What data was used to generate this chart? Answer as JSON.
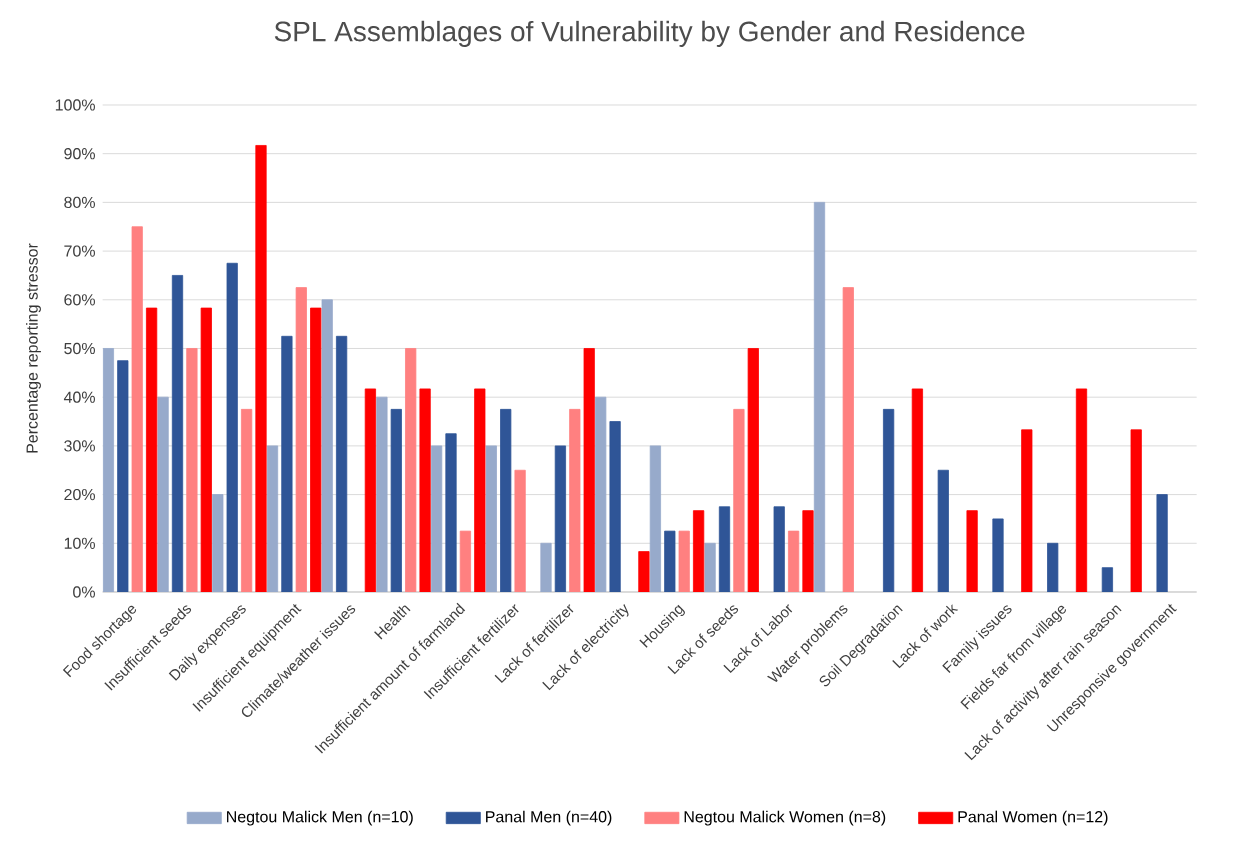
{
  "chart_data": {
    "type": "bar",
    "title": "SPL Assemblages of Vulnerability by Gender and Residence",
    "ylabel": "Percentage reporting stressor",
    "categories": [
      "Food shortage",
      "Insufficient seeds",
      "Daily expenses",
      "Insufficient equipment",
      "Climate/weather issues",
      "Health",
      "Insufficient amount of farmland",
      "Insufficient fertilizer",
      "Lack of fertilizer",
      "Lack of electricity",
      "Housing",
      "Lack of seeds",
      "Lack of Labor",
      "Water problems",
      "Soil Degradation",
      "Lack of work",
      "Family issues",
      "Fields far from village",
      "Lack of activity after rain season",
      "Unresponsive government"
    ],
    "series": [
      {
        "name": "Negtou Malick Men (n=10)",
        "color": "#97aacb",
        "values": [
          50,
          40,
          20,
          30,
          60,
          40,
          30,
          30,
          10,
          40,
          30,
          10,
          null,
          80,
          null,
          null,
          null,
          null,
          null,
          null
        ]
      },
      {
        "name": "Panal Men (n=40)",
        "color": "#2f5597",
        "values": [
          47.5,
          65,
          67.5,
          52.5,
          52.5,
          37.5,
          32.5,
          37.5,
          30,
          35,
          12.5,
          17.5,
          17.5,
          null,
          37.5,
          25,
          15,
          10,
          5,
          20
        ]
      },
      {
        "name": "Negtou Malick Women (n=8)",
        "color": "#ff8080",
        "values": [
          75,
          50,
          37.5,
          62.5,
          null,
          50,
          12.5,
          25,
          37.5,
          null,
          12.5,
          37.5,
          12.5,
          62.5,
          null,
          null,
          null,
          null,
          null,
          null
        ]
      },
      {
        "name": "Panal Women (n=12)",
        "color": "#ff0000",
        "values": [
          58.3,
          58.3,
          91.7,
          58.3,
          41.7,
          41.7,
          41.7,
          null,
          50,
          8.3,
          16.7,
          50,
          16.7,
          null,
          41.7,
          16.7,
          33.3,
          41.7,
          33.3,
          null
        ]
      }
    ],
    "ylim": [
      0,
      100
    ],
    "yticks": [
      {
        "value": 0,
        "label": "0%"
      },
      {
        "value": 10,
        "label": "10%"
      },
      {
        "value": 20,
        "label": "20%"
      },
      {
        "value": 30,
        "label": "30%"
      },
      {
        "value": 40,
        "label": "40%"
      },
      {
        "value": 50,
        "label": "50%"
      },
      {
        "value": 60,
        "label": "60%"
      },
      {
        "value": 70,
        "label": "70%"
      },
      {
        "value": 80,
        "label": "80%"
      },
      {
        "value": 90,
        "label": "90%"
      },
      {
        "value": 100,
        "label": "100%"
      }
    ],
    "grid": "y",
    "legend": "bottom"
  }
}
